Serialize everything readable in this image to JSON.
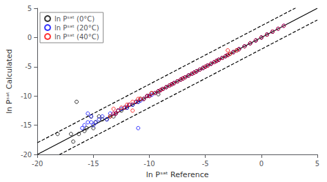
{
  "chart_data": {
    "type": "scatter",
    "xlabel": "ln Pˢᵃᵗ Reference",
    "ylabel": "ln Pˢᵃᵗ Calculated",
    "xlim": [
      -20,
      5
    ],
    "ylim": [
      -20,
      5
    ],
    "xticks": [
      -20,
      -15,
      -10,
      -5,
      0,
      5
    ],
    "yticks": [
      -20,
      -15,
      -10,
      -5,
      0,
      5
    ],
    "grid": false,
    "legend": "upper left",
    "reference_lines": [
      {
        "slope": 1,
        "intercept": 0,
        "color": "#000000",
        "line_style": "solid"
      },
      {
        "slope": 1,
        "intercept": 2.0,
        "color": "#000000",
        "line_style": "dashed"
      },
      {
        "slope": 1,
        "intercept": -2.0,
        "color": "#000000",
        "line_style": "dashed"
      }
    ],
    "series": [
      {
        "name": "ln Pˢᵃᵗ (0°C)",
        "color": "#000000",
        "marker": "open_circle",
        "x": [
          -18.2,
          -17.0,
          -16.8,
          -16.3,
          -15.8,
          -15.6,
          -15.2,
          -15.0,
          -14.8,
          -14.5,
          -14.2,
          -13.8,
          -13.5,
          -13.2,
          -13.0,
          -12.8,
          -12.5,
          -12.2,
          -12.0,
          -11.8,
          -11.5,
          -11.2,
          -11.0,
          -10.8,
          -10.5,
          -10.2,
          -10.0,
          -9.8,
          -9.5,
          -9.2,
          -9.0,
          -8.8,
          -8.5,
          -8.2,
          -8.0,
          -7.8,
          -7.5,
          -7.2,
          -7.0,
          -6.8,
          -6.5,
          -6.2,
          -6.0,
          -5.8,
          -5.5,
          -5.2,
          -5.0,
          -4.8,
          -4.5,
          -4.2,
          -4.0,
          -3.8,
          -3.5,
          -3.2,
          -3.0,
          -2.8,
          -2.5,
          -2.2,
          -2.0,
          -1.5,
          -1.0,
          -0.5,
          0.0,
          0.5,
          1.0,
          -16.5,
          -9.2
        ],
        "values": [
          -16.5,
          -16.5,
          -17.8,
          -16.5,
          -16.0,
          -15.5,
          -13.5,
          -15.5,
          -14.5,
          -13.5,
          -14.0,
          -14.0,
          -13.5,
          -13.5,
          -13.0,
          -12.5,
          -12.5,
          -12.0,
          -12.0,
          -11.5,
          -11.5,
          -11.0,
          -11.0,
          -10.5,
          -10.5,
          -10.0,
          -10.0,
          -9.5,
          -9.5,
          -9.2,
          -9.0,
          -8.8,
          -8.5,
          -8.2,
          -8.0,
          -7.8,
          -7.5,
          -7.2,
          -7.0,
          -6.8,
          -6.5,
          -6.2,
          -6.0,
          -5.8,
          -5.5,
          -5.2,
          -5.0,
          -4.8,
          -4.5,
          -4.2,
          -4.0,
          -3.8,
          -3.5,
          -3.2,
          -3.0,
          -2.8,
          -2.5,
          -2.2,
          -2.0,
          -1.5,
          -1.0,
          -0.5,
          0.0,
          0.5,
          1.0,
          -11.0,
          -9.7
        ]
      },
      {
        "name": "ln Pˢᵃᵗ (20°C)",
        "color": "#0000FF",
        "marker": "open_circle",
        "x": [
          -16.0,
          -15.8,
          -15.5,
          -15.2,
          -15.0,
          -14.8,
          -14.5,
          -14.2,
          -13.8,
          -13.5,
          -13.2,
          -13.0,
          -12.8,
          -12.5,
          -12.2,
          -12.0,
          -11.8,
          -11.5,
          -11.2,
          -11.0,
          -10.8,
          -10.5,
          -10.2,
          -10.0,
          -9.8,
          -9.5,
          -9.2,
          -9.0,
          -8.8,
          -8.5,
          -8.2,
          -8.0,
          -7.8,
          -7.5,
          -7.2,
          -7.0,
          -6.8,
          -6.5,
          -6.2,
          -6.0,
          -5.8,
          -5.5,
          -5.2,
          -5.0,
          -4.8,
          -4.5,
          -4.2,
          -4.0,
          -3.8,
          -3.5,
          -3.2,
          -3.0,
          -2.5,
          -2.0,
          -1.5,
          -1.0,
          -0.5,
          0.0,
          0.5,
          1.0,
          1.5,
          2.0,
          -11.0,
          -15.5,
          -15.2
        ],
        "values": [
          -15.5,
          -15.0,
          -14.5,
          -14.5,
          -15.0,
          -14.5,
          -14.0,
          -13.5,
          -14.0,
          -13.0,
          -13.0,
          -13.0,
          -12.5,
          -12.2,
          -12.0,
          -12.0,
          -11.5,
          -11.5,
          -11.0,
          -11.0,
          -10.8,
          -10.5,
          -10.0,
          -10.0,
          -9.8,
          -9.5,
          -9.2,
          -9.0,
          -8.8,
          -8.5,
          -8.2,
          -8.0,
          -7.8,
          -7.5,
          -7.2,
          -7.0,
          -6.8,
          -6.5,
          -6.2,
          -6.0,
          -5.8,
          -5.5,
          -5.2,
          -5.0,
          -4.8,
          -4.5,
          -4.2,
          -4.0,
          -3.8,
          -3.5,
          -3.2,
          -3.0,
          -2.5,
          -2.0,
          -1.5,
          -1.0,
          -0.5,
          0.0,
          0.5,
          1.0,
          1.5,
          2.0,
          -15.5,
          -13.0,
          -13.5
        ]
      },
      {
        "name": "ln Pˢᵃᵗ (40°C)",
        "color": "#FF0000",
        "marker": "open_circle",
        "x": [
          -13.5,
          -13.2,
          -13.0,
          -12.8,
          -12.5,
          -12.2,
          -12.0,
          -11.8,
          -11.5,
          -11.2,
          -11.0,
          -10.8,
          -10.5,
          -10.2,
          -10.0,
          -9.8,
          -9.5,
          -9.2,
          -9.0,
          -8.8,
          -8.5,
          -8.2,
          -8.0,
          -7.8,
          -7.5,
          -7.2,
          -7.0,
          -6.8,
          -6.5,
          -6.2,
          -6.0,
          -5.8,
          -5.5,
          -5.2,
          -5.0,
          -4.8,
          -4.5,
          -4.2,
          -4.0,
          -3.8,
          -3.5,
          -3.2,
          -3.0,
          -2.8,
          -2.5,
          -2.2,
          -2.0,
          -1.5,
          -1.0,
          -0.5,
          0.0,
          0.5,
          1.0,
          1.5,
          2.0,
          -3.0,
          -11.5,
          -13.2
        ],
        "values": [
          -13.5,
          -13.0,
          -13.0,
          -12.5,
          -12.0,
          -12.0,
          -11.5,
          -11.5,
          -11.0,
          -11.0,
          -10.5,
          -10.5,
          -10.5,
          -10.0,
          -10.0,
          -9.5,
          -9.5,
          -9.2,
          -9.0,
          -8.8,
          -8.5,
          -8.2,
          -8.0,
          -7.8,
          -7.5,
          -7.2,
          -7.0,
          -6.8,
          -6.5,
          -6.2,
          -6.0,
          -5.8,
          -5.5,
          -5.2,
          -5.0,
          -4.8,
          -4.5,
          -4.2,
          -4.0,
          -3.8,
          -3.5,
          -3.2,
          -3.0,
          -2.8,
          -2.5,
          -2.2,
          -2.0,
          -1.5,
          -1.0,
          -0.5,
          0.0,
          0.5,
          1.0,
          1.5,
          2.0,
          -2.2,
          -12.5,
          -12.2
        ]
      }
    ]
  }
}
